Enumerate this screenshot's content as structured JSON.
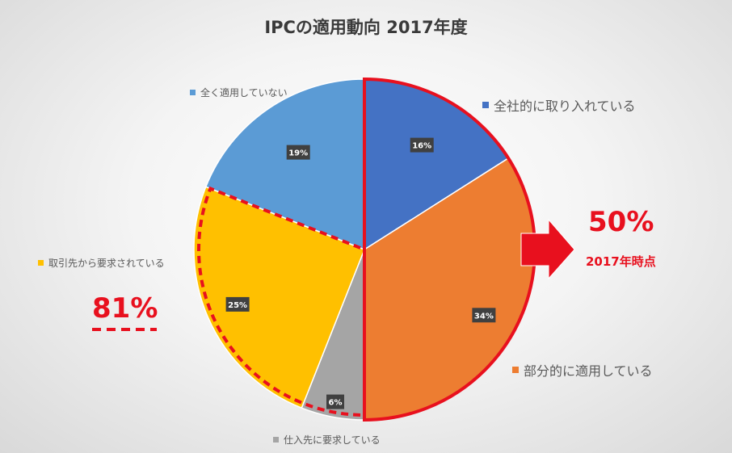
{
  "chart_data": {
    "type": "pie",
    "title": "IPCの適用動向 2017年度",
    "slices": [
      {
        "name": "全社的に取り入れている",
        "value": 16,
        "label": "16%",
        "color": "#4472c4"
      },
      {
        "name": "部分的に適用している",
        "value": 34,
        "label": "34%",
        "color": "#ed7d31"
      },
      {
        "name": "仕入先に要求している",
        "value": 6,
        "label": "6%",
        "color": "#a5a5a5"
      },
      {
        "name": "取引先から要求されている",
        "value": 25,
        "label": "25%",
        "color": "#ffc000"
      },
      {
        "name": "全く適用していない",
        "value": 19,
        "label": "19%",
        "color": "#5b9bd5"
      }
    ]
  },
  "callouts": {
    "right_pct": "50%",
    "right_sub": "2017年時点",
    "left_pct": "81%"
  },
  "colors": {
    "highlight": "#e8101e",
    "label_bg": "#404040"
  }
}
